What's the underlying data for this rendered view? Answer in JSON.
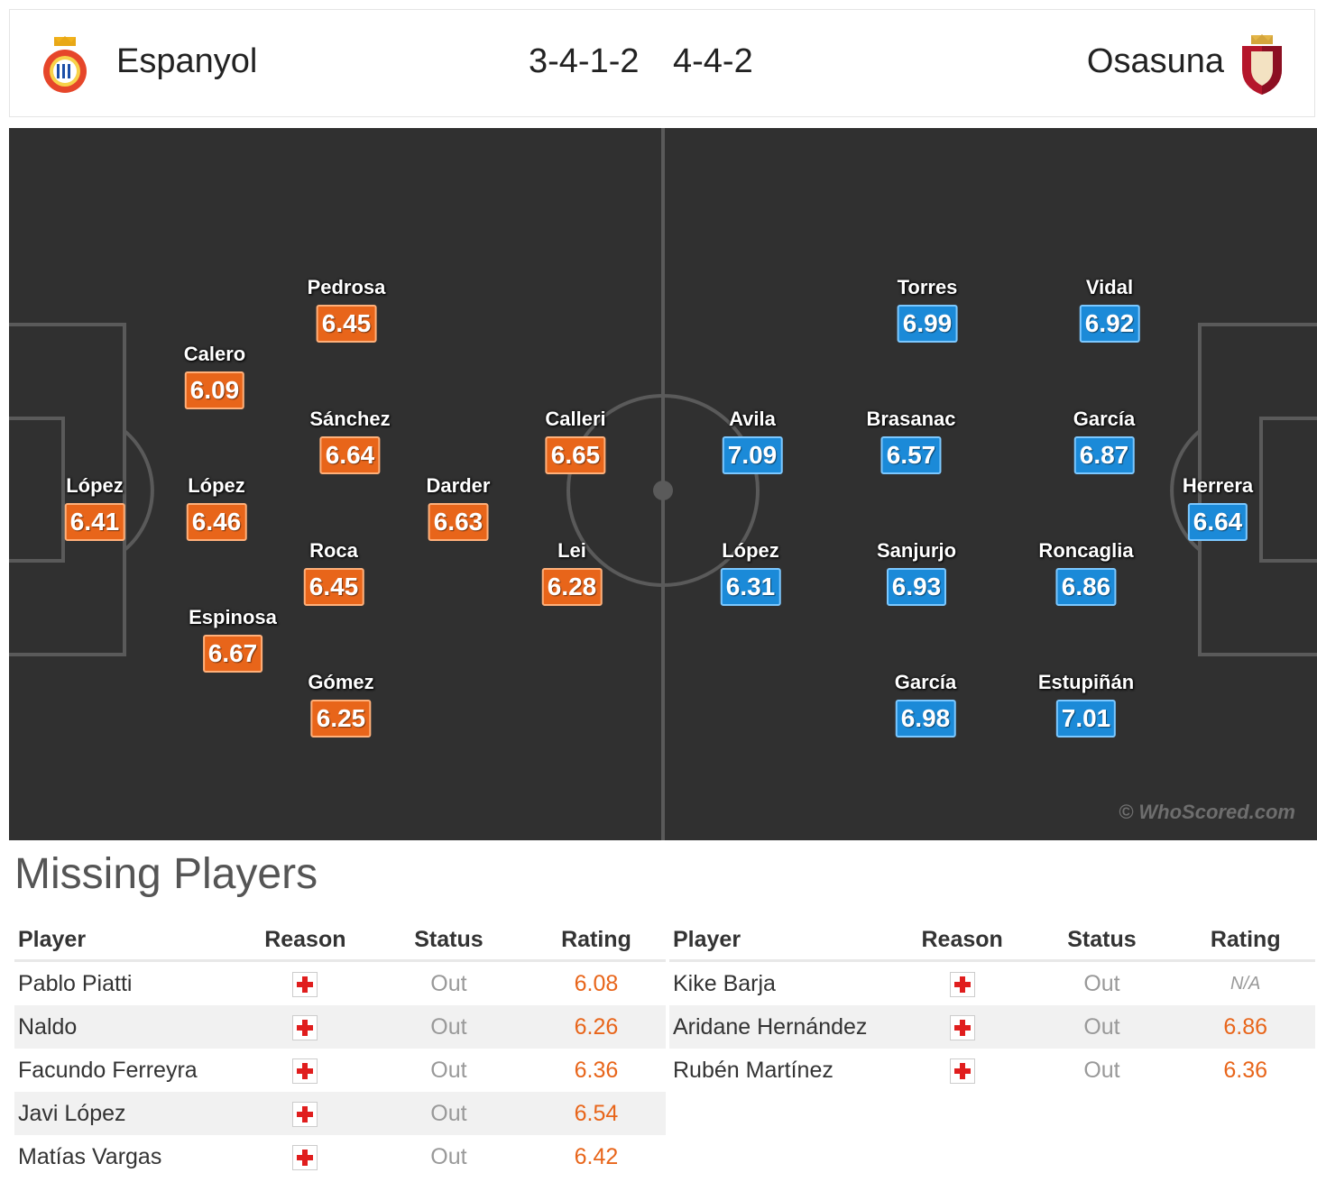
{
  "header": {
    "home": {
      "name": "Espanyol",
      "formation": "3-4-1-2"
    },
    "away": {
      "name": "Osasuna",
      "formation": "4-4-2"
    }
  },
  "pitch": {
    "home_players": [
      {
        "name": "López",
        "rating": "6.41"
      },
      {
        "name": "Calero",
        "rating": "6.09"
      },
      {
        "name": "López",
        "rating": "6.46"
      },
      {
        "name": "Espinosa",
        "rating": "6.67"
      },
      {
        "name": "Pedrosa",
        "rating": "6.45"
      },
      {
        "name": "Sánchez",
        "rating": "6.64"
      },
      {
        "name": "Roca",
        "rating": "6.45"
      },
      {
        "name": "Gómez",
        "rating": "6.25"
      },
      {
        "name": "Darder",
        "rating": "6.63"
      },
      {
        "name": "Calleri",
        "rating": "6.65"
      },
      {
        "name": "Lei",
        "rating": "6.28"
      }
    ],
    "away_players": [
      {
        "name": "Avila",
        "rating": "7.09"
      },
      {
        "name": "López",
        "rating": "6.31"
      },
      {
        "name": "Torres",
        "rating": "6.99"
      },
      {
        "name": "Brasanac",
        "rating": "6.57"
      },
      {
        "name": "Sanjurjo",
        "rating": "6.93"
      },
      {
        "name": "García",
        "rating": "6.98"
      },
      {
        "name": "Vidal",
        "rating": "6.92"
      },
      {
        "name": "García",
        "rating": "6.87"
      },
      {
        "name": "Roncaglia",
        "rating": "6.86"
      },
      {
        "name": "Estupiñán",
        "rating": "7.01"
      },
      {
        "name": "Herrera",
        "rating": "6.64"
      }
    ],
    "watermark": "© WhoScored.com"
  },
  "missing": {
    "title": "Missing Players",
    "columns": [
      "Player",
      "Reason",
      "Status",
      "Rating"
    ],
    "home": [
      {
        "player": "Pablo Piatti",
        "status": "Out",
        "rating": "6.08"
      },
      {
        "player": "Naldo",
        "status": "Out",
        "rating": "6.26"
      },
      {
        "player": "Facundo Ferreyra",
        "status": "Out",
        "rating": "6.36"
      },
      {
        "player": "Javi López",
        "status": "Out",
        "rating": "6.54"
      },
      {
        "player": "Matías Vargas",
        "status": "Out",
        "rating": "6.42"
      }
    ],
    "away": [
      {
        "player": "Kike Barja",
        "status": "Out",
        "rating": "N/A"
      },
      {
        "player": "Aridane Hernández",
        "status": "Out",
        "rating": "6.86"
      },
      {
        "player": "Rubén Martínez",
        "status": "Out",
        "rating": "6.36"
      }
    ],
    "reason_icon": "injury-cross-icon"
  }
}
